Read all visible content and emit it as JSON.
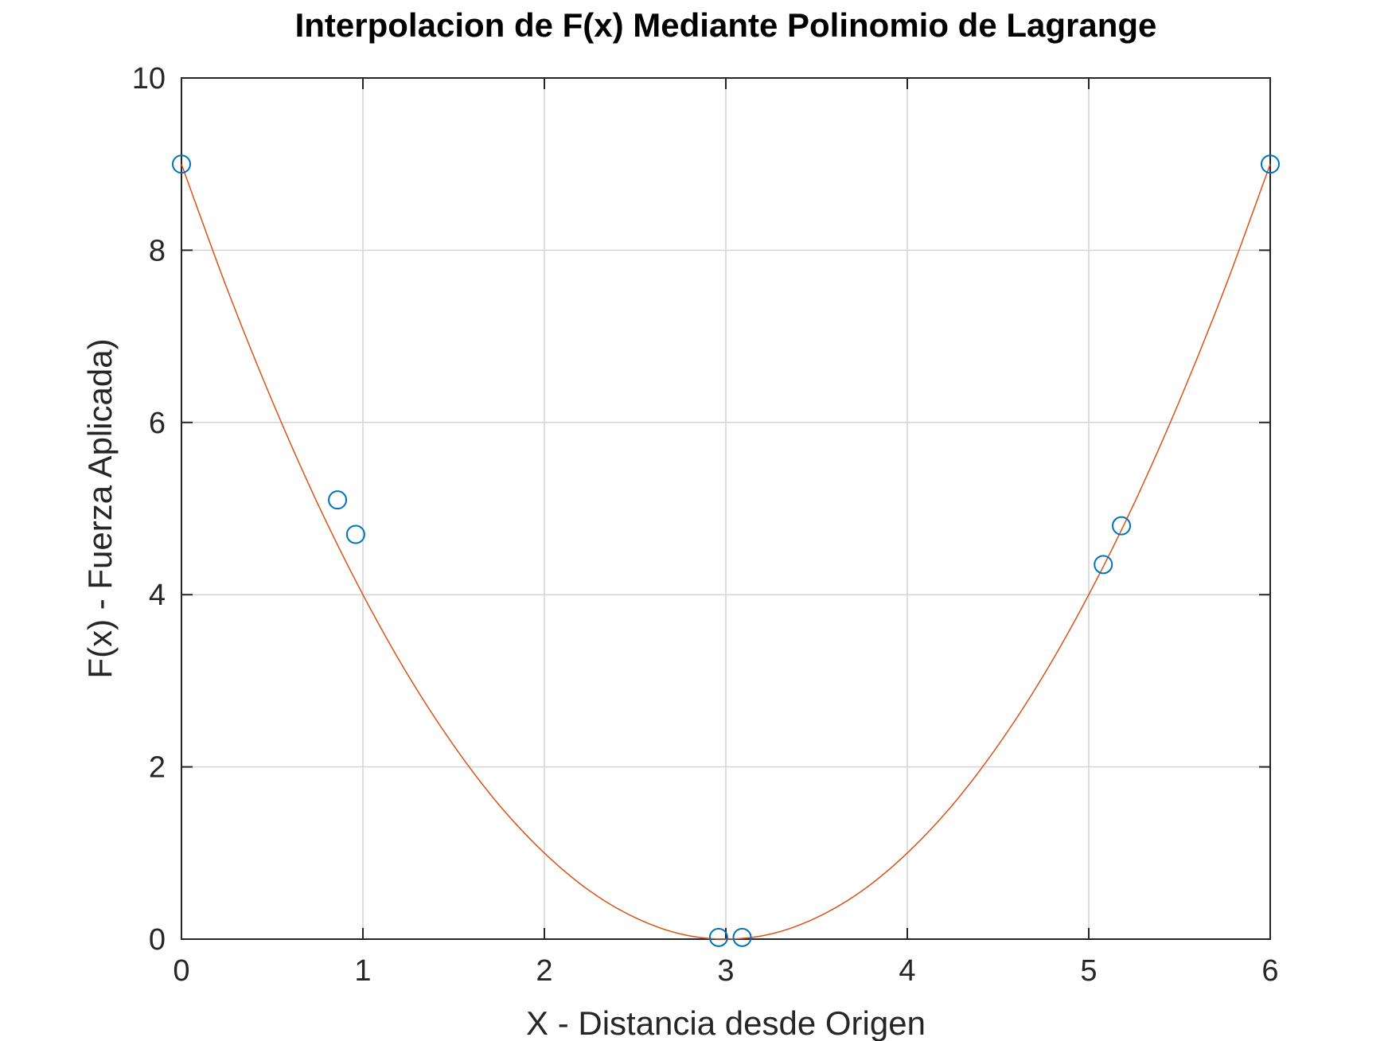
{
  "chart_data": {
    "type": "line",
    "title": "Interpolacion de F(x) Mediante Polinomio de Lagrange",
    "xlabel": "X - Distancia desde Origen",
    "ylabel": "F(x) - Fuerza Aplicada)",
    "xlim": [
      0,
      6
    ],
    "ylim": [
      0,
      10
    ],
    "xticks": [
      "0",
      "1",
      "2",
      "3",
      "4",
      "5",
      "6"
    ],
    "yticks": [
      "0",
      "2",
      "4",
      "6",
      "8",
      "10"
    ],
    "grid": true,
    "series": [
      {
        "kind": "scatter",
        "marker": "circle",
        "color": "#0072BD",
        "x": [
          0,
          0.86,
          0.96,
          2.96,
          3.09,
          5.08,
          5.18,
          6
        ],
        "y": [
          9.0,
          5.1,
          4.7,
          0.02,
          0.02,
          4.35,
          4.8,
          9.0
        ]
      },
      {
        "kind": "line",
        "color": "#D95319",
        "x": [
          0,
          0.25,
          0.5,
          0.75,
          1,
          1.25,
          1.5,
          1.75,
          2,
          2.25,
          2.5,
          2.75,
          3,
          3.25,
          3.5,
          3.75,
          4,
          4.25,
          4.5,
          4.75,
          5,
          5.25,
          5.5,
          5.75,
          6
        ],
        "y": [
          9.0,
          7.56,
          6.25,
          5.06,
          4.0,
          3.06,
          2.25,
          1.56,
          1.0,
          0.56,
          0.25,
          0.06,
          0.0,
          0.06,
          0.25,
          0.56,
          1.0,
          1.56,
          2.25,
          3.06,
          4.0,
          5.06,
          6.25,
          7.56,
          9.0
        ]
      }
    ]
  }
}
